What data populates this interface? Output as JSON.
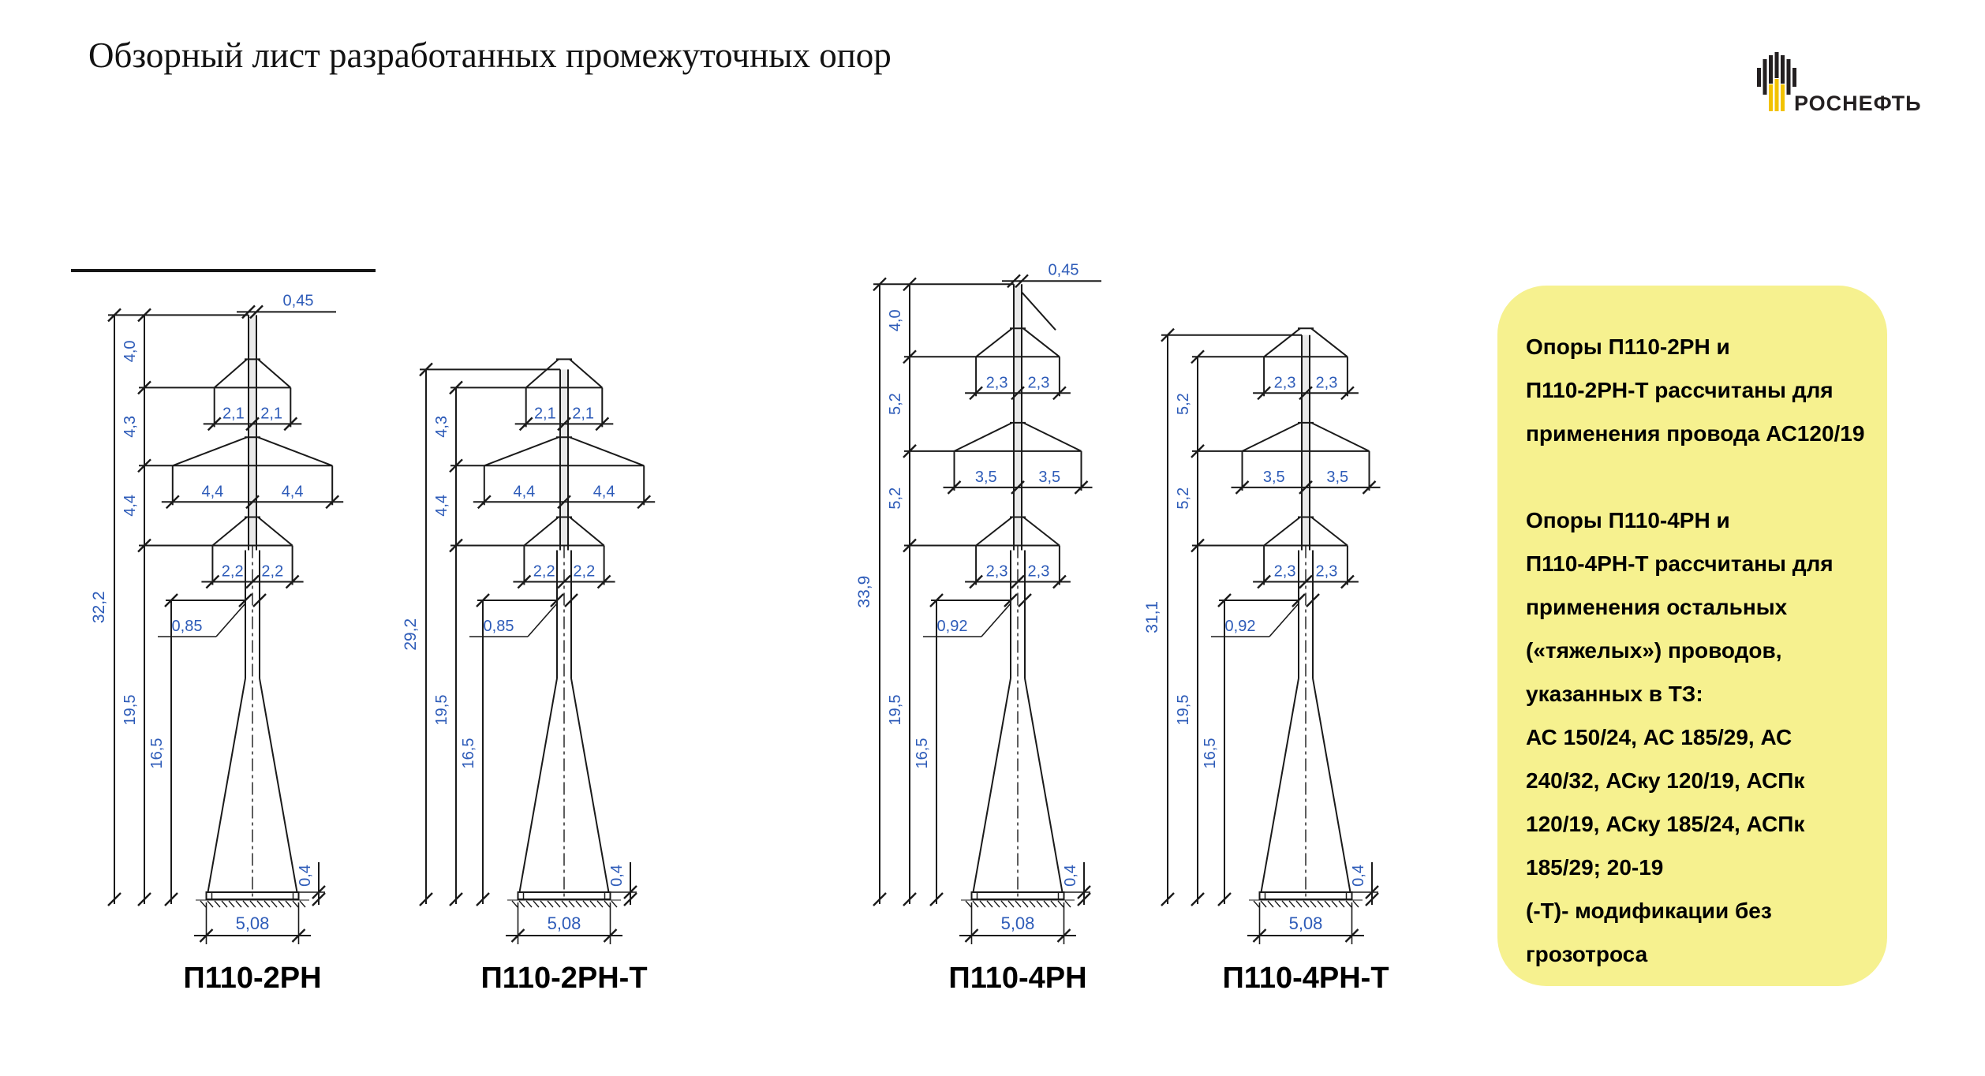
{
  "slide": {
    "title": "Обзорный лист разработанных промежуточных опор"
  },
  "logo": {
    "brand": "РОСНЕФТЬ"
  },
  "note": {
    "lines": [
      "Опоры П110-2РН и",
      "П110-2РН-Т рассчитаны для",
      "применения провода АС120/19",
      "",
      "Опоры П110-4РН и",
      "П110-4РН-Т рассчитаны для",
      "применения остальных",
      "(«тяжелых») проводов,",
      "указанных в ТЗ:",
      "АС 150/24, АС 185/29, АС",
      "240/32, АСку 120/19, АСПк",
      "120/19, АСку 185/24, АСПк",
      "185/29; 20-19",
      "(-Т)- модификации без",
      "грозотроса"
    ]
  },
  "colors": {
    "dimension_text": "#2d5bb8",
    "line": "#1a1a1a",
    "note_background": "#f6f18f",
    "logo_yellow": "#f2c200"
  },
  "towers": [
    {
      "name": "П110-2РН",
      "total_height": "32,2",
      "total_m": 32.2,
      "peak_top_width": "0,45",
      "upper_segments": [
        {
          "label": "4,0",
          "m": 4.0
        },
        {
          "label": "4,3",
          "m": 4.3
        },
        {
          "label": "4,4",
          "m": 4.4
        }
      ],
      "lower_dims": [
        {
          "label": "19,5",
          "m": 19.5
        },
        {
          "label": "16,5",
          "m": 16.5
        }
      ],
      "waist_width": "0,85",
      "crossarms": [
        {
          "half_label": "2,1",
          "half_m": 2.1
        },
        {
          "half_label": "4,4",
          "half_m": 4.4
        },
        {
          "half_label": "2,2",
          "half_m": 2.2
        }
      ],
      "base_width": "5,08",
      "base_height": "0,4"
    },
    {
      "name": "П110-2РН-Т",
      "total_height": "29,2",
      "total_m": 29.2,
      "peak_top_width": "",
      "upper_segments": [
        {
          "label": "4,3",
          "m": 4.3
        },
        {
          "label": "4,4",
          "m": 4.4
        }
      ],
      "lower_dims": [
        {
          "label": "19,5",
          "m": 19.5
        },
        {
          "label": "16,5",
          "m": 16.5
        }
      ],
      "waist_width": "0,85",
      "crossarms": [
        {
          "half_label": "2,1",
          "half_m": 2.1
        },
        {
          "half_label": "4,4",
          "half_m": 4.4
        },
        {
          "half_label": "2,2",
          "half_m": 2.2
        }
      ],
      "base_width": "5,08",
      "base_height": "0,4"
    },
    {
      "name": "П110-4РН",
      "total_height": "33,9",
      "total_m": 33.9,
      "peak_top_width": "0,45",
      "upper_segments": [
        {
          "label": "4,0",
          "m": 4.0
        },
        {
          "label": "5,2",
          "m": 5.2
        },
        {
          "label": "5,2",
          "m": 5.2
        }
      ],
      "lower_dims": [
        {
          "label": "19,5",
          "m": 19.5
        },
        {
          "label": "16,5",
          "m": 16.5
        }
      ],
      "waist_width": "0,92",
      "crossarms": [
        {
          "half_label": "2,3",
          "half_m": 2.3
        },
        {
          "half_label": "3,5",
          "half_m": 3.5
        },
        {
          "half_label": "2,3",
          "half_m": 2.3
        }
      ],
      "base_width": "5,08",
      "base_height": "0,4"
    },
    {
      "name": "П110-4РН-Т",
      "total_height": "31,1",
      "total_m": 31.1,
      "peak_top_width": "",
      "upper_segments": [
        {
          "label": "5,2",
          "m": 5.2
        },
        {
          "label": "5,2",
          "m": 5.2
        }
      ],
      "lower_dims": [
        {
          "label": "19,5",
          "m": 19.5
        },
        {
          "label": "16,5",
          "m": 16.5
        }
      ],
      "waist_width": "0,92",
      "crossarms": [
        {
          "half_label": "2,3",
          "half_m": 2.3
        },
        {
          "half_label": "3,5",
          "half_m": 3.5
        },
        {
          "half_label": "2,3",
          "half_m": 2.3
        }
      ],
      "base_width": "5,08",
      "base_height": "0,4"
    }
  ]
}
